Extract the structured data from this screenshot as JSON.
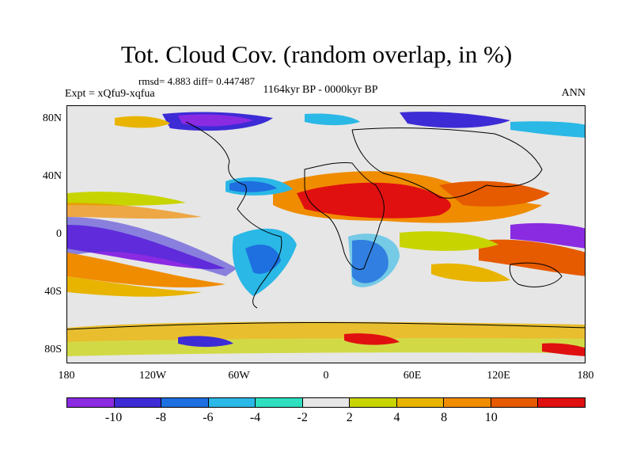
{
  "title": "Tot. Cloud Cov. (random overlap, in %)",
  "stats": "rmsd= 4.883 diff= 0.447487",
  "experiment": "Expt = xQfu9-xqfua",
  "period": "1164kyr BP - 0000kyr BP",
  "season": "ANN",
  "lat_ticks": [
    "80N",
    "40N",
    "0",
    "40S",
    "80S"
  ],
  "lon_ticks": [
    "180",
    "120W",
    "60W",
    "0",
    "60E",
    "120E",
    "180"
  ],
  "colorbar": {
    "labels": [
      "-10",
      "-8",
      "-6",
      "-4",
      "-2",
      "2",
      "4",
      "8",
      "10"
    ],
    "colors": [
      "#8a2be2",
      "#3d2bd6",
      "#1e6fe0",
      "#2ab8e6",
      "#2ee0c0",
      "#e6e6e6",
      "#c8d400",
      "#e8b400",
      "#f08c00",
      "#e65a00",
      "#e01010"
    ]
  }
}
